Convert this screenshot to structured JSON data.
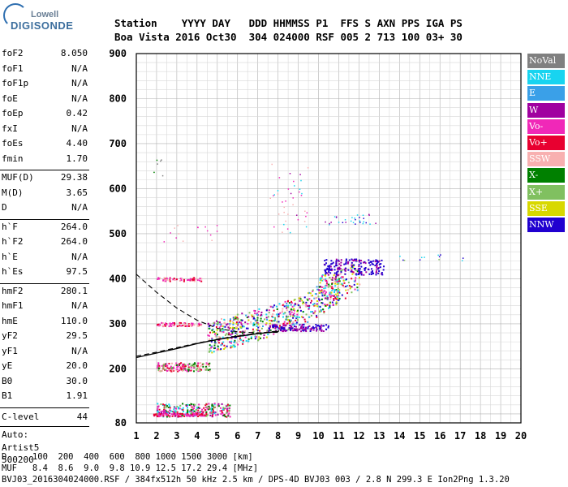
{
  "logo": {
    "top": "Lowell",
    "main": "DIGISONDE"
  },
  "header": {
    "line1": "Station    YYYY DAY   DDD HHMMSS P1  FFS S AXN PPS IGA PS",
    "line2": "Boa Vista 2016 Oct30  304 024000 RSF 005 2 713 100 03+ 30"
  },
  "params": {
    "group1": [
      {
        "label": "foF2",
        "value": "8.050"
      },
      {
        "label": "foF1",
        "value": "N/A"
      },
      {
        "label": "foF1p",
        "value": "N/A"
      },
      {
        "label": "foE",
        "value": "N/A"
      },
      {
        "label": "foEp",
        "value": "0.42"
      },
      {
        "label": "fxI",
        "value": "N/A"
      },
      {
        "label": "foEs",
        "value": "4.40"
      },
      {
        "label": "fmin",
        "value": "1.70"
      }
    ],
    "group2": [
      {
        "label": "MUF(D)",
        "value": "29.38"
      },
      {
        "label": "M(D)",
        "value": "3.65"
      },
      {
        "label": "D",
        "value": "N/A"
      }
    ],
    "group3": [
      {
        "label": "h`F",
        "value": "264.0"
      },
      {
        "label": "h`F2",
        "value": "264.0"
      },
      {
        "label": "h`E",
        "value": "N/A"
      },
      {
        "label": "h`Es",
        "value": "97.5"
      }
    ],
    "group4": [
      {
        "label": "hmF2",
        "value": "280.1"
      },
      {
        "label": "hmF1",
        "value": "N/A"
      },
      {
        "label": "hmE",
        "value": "110.0"
      },
      {
        "label": "yF2",
        "value": "29.5"
      },
      {
        "label": "yF1",
        "value": "N/A"
      },
      {
        "label": "yE",
        "value": "20.0"
      },
      {
        "label": "B0",
        "value": "30.0"
      },
      {
        "label": "B1",
        "value": "1.91"
      }
    ],
    "clevel": {
      "label": "C-level",
      "value": "44"
    },
    "auto": [
      "Auto:",
      "Artist5",
      "500200"
    ]
  },
  "legend": [
    {
      "label": "NoVal",
      "color": "#808080"
    },
    {
      "label": "NNE",
      "color": "#18d4f0"
    },
    {
      "label": "E",
      "color": "#3aa0e8"
    },
    {
      "label": "W",
      "color": "#a000a0"
    },
    {
      "label": "Vo-",
      "color": "#f028b8"
    },
    {
      "label": "Vo+",
      "color": "#e80030"
    },
    {
      "label": "SSW",
      "color": "#f8b0b0"
    },
    {
      "label": "X-",
      "color": "#008000"
    },
    {
      "label": "X+",
      "color": "#80c060"
    },
    {
      "label": "SSE",
      "color": "#d8d800"
    },
    {
      "label": "NNW",
      "color": "#2000d0"
    }
  ],
  "chart_data": {
    "type": "scatter",
    "xlim": [
      1,
      20
    ],
    "ylim": [
      80,
      900
    ],
    "x_ticks": [
      "1",
      "2",
      "3",
      "4",
      "5",
      "6",
      "7",
      "8",
      "9",
      "10",
      "11",
      "12",
      "13",
      "14",
      "15",
      "16",
      "17",
      "18",
      "19",
      "20"
    ],
    "y_ticks": [
      "80",
      "200",
      "300",
      "400",
      "500",
      "600",
      "700",
      "800",
      "900"
    ],
    "grid": true,
    "profile_curve": {
      "x": [
        1.0,
        2.0,
        3.0,
        4.0,
        5.0,
        6.0,
        7.0,
        8.0,
        8.05
      ],
      "y": [
        225,
        235,
        245,
        256,
        265,
        272,
        278,
        283,
        285
      ]
    },
    "dashed_upper": {
      "x": [
        1.0,
        1.5,
        2.0,
        3.0,
        4.0,
        5.0,
        6.0,
        7.0,
        8.0
      ],
      "y": [
        410,
        390,
        370,
        335,
        308,
        290,
        282,
        280,
        281
      ]
    },
    "dashed_lower": {
      "x": [
        1.0,
        2.0,
        3.0,
        4.0,
        5.0,
        6.0,
        7.0,
        8.0
      ],
      "y": [
        228,
        237,
        247,
        257,
        266,
        273,
        279,
        284
      ]
    }
  },
  "footer": {
    "line1": "D     100  200  400  600  800 1000 1500 3000 [km]",
    "line2": "MUF   8.4  8.6  9.0  9.8 10.9 12.5 17.2 29.4 [MHz]",
    "line3": "BVJ03_2016304024000.RSF / 384fx512h 50 kHz 2.5 km / DPS-4D BVJ03 003 / 2.8 N 299.3 E Ion2Png 1.3.20"
  }
}
